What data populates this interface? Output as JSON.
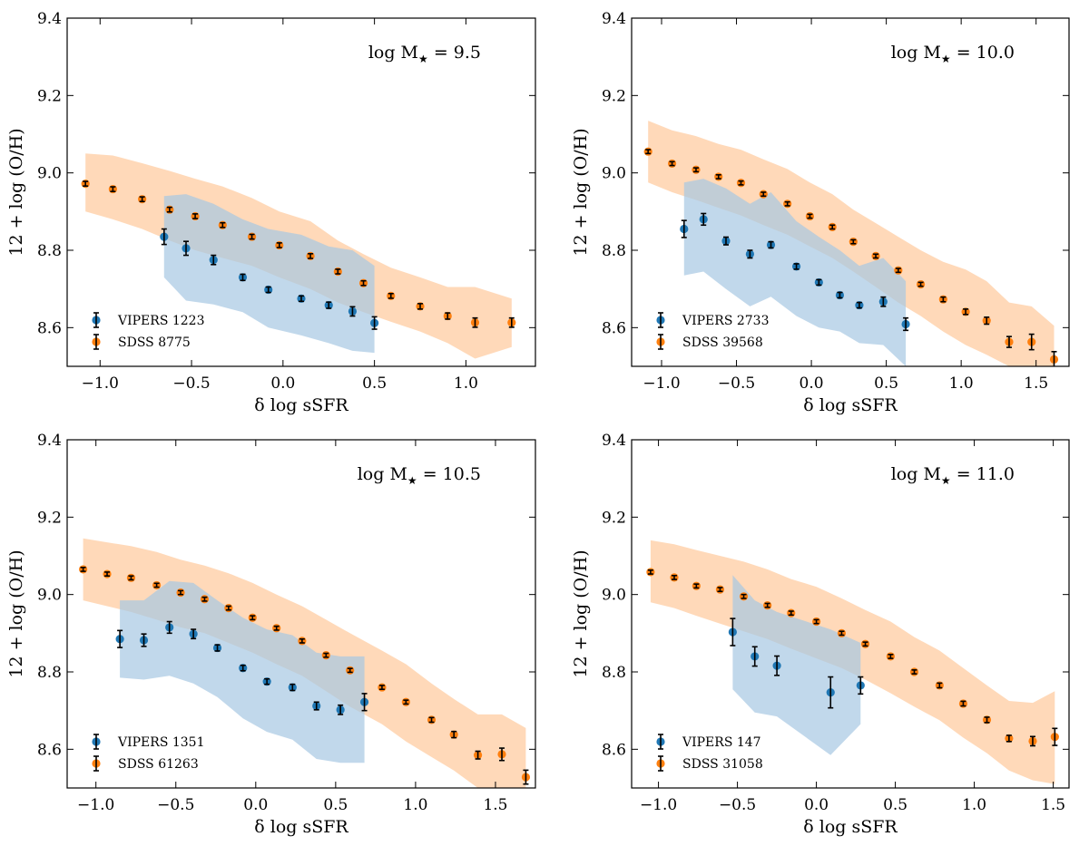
{
  "figure_title": "",
  "colors": {
    "vipers": "#1f77b4",
    "sdss": "#ff7f0e",
    "vipers_band": "#a6c8e2",
    "sdss_band": "#ffd2ad",
    "errorbar": "#000000"
  },
  "chart_data": [
    {
      "type": "scatter",
      "title": "",
      "annotation": "log M★ = 9.5",
      "annotation_base": "log M",
      "annotation_sub": "★",
      "annotation_value": " = 9.5",
      "xlabel": "δ log sSFR",
      "ylabel": "12 + log (O/H)",
      "xlim": [
        -1.18,
        1.38
      ],
      "ylim": [
        8.5,
        9.4
      ],
      "xticks": [
        -1.0,
        -0.5,
        0.0,
        0.5,
        1.0
      ],
      "xtick_labels": [
        "−1.0",
        "−0.5",
        "0.0",
        "0.5",
        "1.0"
      ],
      "yticks": [
        8.6,
        8.8,
        9.0,
        9.2,
        9.4
      ],
      "ytick_labels": [
        "8.6",
        "8.8",
        "9.0",
        "9.2",
        "9.4"
      ],
      "legend": [
        "VIPERS 1223",
        "SDSS 8775"
      ],
      "legend_position": "lower-left",
      "series": [
        {
          "name": "VIPERS 1223",
          "x": [
            -0.65,
            -0.53,
            -0.38,
            -0.22,
            -0.08,
            0.1,
            0.25,
            0.38,
            0.5
          ],
          "y": [
            8.835,
            8.805,
            8.775,
            8.73,
            8.698,
            8.675,
            8.658,
            8.642,
            8.612
          ],
          "err": [
            0.02,
            0.018,
            0.012,
            0.008,
            0.007,
            0.007,
            0.008,
            0.012,
            0.016
          ],
          "band_x": [
            -0.65,
            -0.53,
            -0.38,
            -0.22,
            -0.08,
            0.1,
            0.25,
            0.38,
            0.5
          ],
          "band_upper": [
            8.94,
            8.945,
            8.92,
            8.88,
            8.855,
            8.84,
            8.81,
            8.8,
            8.76
          ],
          "band_lower": [
            8.73,
            8.67,
            8.66,
            8.64,
            8.6,
            8.58,
            8.56,
            8.54,
            8.535
          ]
        },
        {
          "name": "SDSS 8775",
          "x": [
            -1.08,
            -0.93,
            -0.77,
            -0.62,
            -0.48,
            -0.33,
            -0.17,
            -0.02,
            0.15,
            0.3,
            0.44,
            0.59,
            0.75,
            0.9,
            1.05,
            1.25
          ],
          "y": [
            8.972,
            8.958,
            8.932,
            8.905,
            8.888,
            8.865,
            8.835,
            8.813,
            8.785,
            8.745,
            8.715,
            8.682,
            8.655,
            8.63,
            8.613,
            8.613
          ],
          "err": [
            0.006,
            0.006,
            0.006,
            0.006,
            0.006,
            0.006,
            0.006,
            0.006,
            0.006,
            0.006,
            0.006,
            0.006,
            0.007,
            0.008,
            0.012,
            0.012
          ],
          "band_x": [
            -1.08,
            -0.93,
            -0.77,
            -0.62,
            -0.48,
            -0.33,
            -0.17,
            -0.02,
            0.15,
            0.3,
            0.44,
            0.59,
            0.75,
            0.9,
            1.05,
            1.25
          ],
          "band_upper": [
            9.05,
            9.045,
            9.025,
            9.005,
            8.985,
            8.965,
            8.935,
            8.9,
            8.875,
            8.825,
            8.79,
            8.755,
            8.73,
            8.705,
            8.705,
            8.675
          ],
          "band_lower": [
            8.9,
            8.88,
            8.855,
            8.825,
            8.8,
            8.78,
            8.76,
            8.73,
            8.7,
            8.665,
            8.64,
            8.615,
            8.59,
            8.56,
            8.52,
            8.55
          ]
        }
      ]
    },
    {
      "type": "scatter",
      "title": "",
      "annotation": "log M★ = 10.0",
      "annotation_base": "log M",
      "annotation_sub": "★",
      "annotation_value": " = 10.0",
      "xlabel": "δ log sSFR",
      "ylabel": "12 + log (O/H)",
      "xlim": [
        -1.2,
        1.72
      ],
      "ylim": [
        8.5,
        9.4
      ],
      "xticks": [
        -1.0,
        -0.5,
        0.0,
        0.5,
        1.0,
        1.5
      ],
      "xtick_labels": [
        "−1.0",
        "−0.5",
        "0.0",
        "0.5",
        "1.0",
        "1.5"
      ],
      "yticks": [
        8.6,
        8.8,
        9.0,
        9.2,
        9.4
      ],
      "ytick_labels": [
        "8.6",
        "8.8",
        "9.0",
        "9.2",
        "9.4"
      ],
      "legend": [
        "VIPERS 2733",
        "SDSS 39568"
      ],
      "legend_position": "lower-left",
      "series": [
        {
          "name": "VIPERS 2733",
          "x": [
            -0.85,
            -0.72,
            -0.57,
            -0.41,
            -0.27,
            -0.1,
            0.05,
            0.19,
            0.32,
            0.48,
            0.63
          ],
          "y": [
            8.855,
            8.88,
            8.824,
            8.79,
            8.814,
            8.758,
            8.717,
            8.684,
            8.658,
            8.667,
            8.609
          ],
          "err": [
            0.022,
            0.015,
            0.01,
            0.01,
            0.008,
            0.007,
            0.007,
            0.007,
            0.007,
            0.012,
            0.016
          ],
          "band_x": [
            -0.85,
            -0.72,
            -0.57,
            -0.41,
            -0.27,
            -0.1,
            0.05,
            0.19,
            0.32,
            0.48,
            0.63
          ],
          "band_upper": [
            8.975,
            8.985,
            8.96,
            8.92,
            8.95,
            8.875,
            8.835,
            8.8,
            8.76,
            8.78,
            8.72
          ],
          "band_lower": [
            8.735,
            8.745,
            8.7,
            8.655,
            8.68,
            8.63,
            8.6,
            8.59,
            8.56,
            8.555,
            8.5
          ]
        },
        {
          "name": "SDSS 39568",
          "x": [
            -1.09,
            -0.93,
            -0.77,
            -0.62,
            -0.47,
            -0.32,
            -0.16,
            -0.01,
            0.14,
            0.28,
            0.43,
            0.58,
            0.73,
            0.88,
            1.03,
            1.17,
            1.32,
            1.47,
            1.62
          ],
          "y": [
            9.055,
            9.024,
            9.008,
            8.99,
            8.974,
            8.945,
            8.92,
            8.888,
            8.86,
            8.822,
            8.785,
            8.748,
            8.712,
            8.673,
            8.641,
            8.618,
            8.563,
            8.563,
            8.518
          ],
          "err": [
            0.005,
            0.005,
            0.005,
            0.005,
            0.005,
            0.005,
            0.005,
            0.005,
            0.005,
            0.005,
            0.005,
            0.005,
            0.005,
            0.006,
            0.007,
            0.009,
            0.014,
            0.02,
            0.02
          ],
          "band_x": [
            -1.09,
            -0.93,
            -0.77,
            -0.62,
            -0.47,
            -0.32,
            -0.16,
            -0.01,
            0.14,
            0.28,
            0.43,
            0.58,
            0.73,
            0.88,
            1.03,
            1.17,
            1.32,
            1.47,
            1.62
          ],
          "band_upper": [
            9.135,
            9.11,
            9.095,
            9.075,
            9.06,
            9.035,
            9.01,
            8.975,
            8.945,
            8.905,
            8.87,
            8.835,
            8.8,
            8.77,
            8.75,
            8.72,
            8.665,
            8.655,
            8.605
          ],
          "band_lower": [
            8.975,
            8.95,
            8.93,
            8.91,
            8.89,
            8.865,
            8.84,
            8.81,
            8.78,
            8.745,
            8.705,
            8.665,
            8.63,
            8.59,
            8.555,
            8.53,
            8.5,
            8.5,
            8.5
          ]
        }
      ]
    },
    {
      "type": "scatter",
      "title": "",
      "annotation": "log M★ = 10.5",
      "annotation_base": "log M",
      "annotation_sub": "★",
      "annotation_value": " = 10.5",
      "xlabel": "δ log sSFR",
      "ylabel": "12 + log (O/H)",
      "xlim": [
        -1.18,
        1.75
      ],
      "ylim": [
        8.5,
        9.4
      ],
      "xticks": [
        -1.0,
        -0.5,
        0.0,
        0.5,
        1.0,
        1.5
      ],
      "xtick_labels": [
        "−1.0",
        "−0.5",
        "0.0",
        "0.5",
        "1.0",
        "1.5"
      ],
      "yticks": [
        8.6,
        8.8,
        9.0,
        9.2,
        9.4
      ],
      "ytick_labels": [
        "8.6",
        "8.8",
        "9.0",
        "9.2",
        "9.4"
      ],
      "legend": [
        "VIPERS 1351",
        "SDSS 61263"
      ],
      "legend_position": "lower-left",
      "series": [
        {
          "name": "VIPERS 1351",
          "x": [
            -0.85,
            -0.7,
            -0.54,
            -0.39,
            -0.24,
            -0.08,
            0.07,
            0.23,
            0.38,
            0.53,
            0.68
          ],
          "y": [
            8.885,
            8.882,
            8.915,
            8.898,
            8.862,
            8.81,
            8.775,
            8.76,
            8.712,
            8.702,
            8.722
          ],
          "err": [
            0.022,
            0.016,
            0.015,
            0.012,
            0.008,
            0.007,
            0.007,
            0.008,
            0.01,
            0.012,
            0.022
          ],
          "band_x": [
            -0.85,
            -0.7,
            -0.54,
            -0.39,
            -0.24,
            -0.08,
            0.07,
            0.23,
            0.38,
            0.53,
            0.68
          ],
          "band_upper": [
            8.985,
            8.985,
            9.035,
            9.03,
            8.985,
            8.94,
            8.91,
            8.895,
            8.85,
            8.84,
            8.84
          ],
          "band_lower": [
            8.785,
            8.78,
            8.79,
            8.77,
            8.735,
            8.68,
            8.645,
            8.625,
            8.575,
            8.565,
            8.565
          ]
        },
        {
          "name": "SDSS 61263",
          "x": [
            -1.08,
            -0.93,
            -0.78,
            -0.62,
            -0.47,
            -0.32,
            -0.17,
            -0.02,
            0.13,
            0.29,
            0.44,
            0.59,
            0.79,
            0.94,
            1.1,
            1.24,
            1.39,
            1.54,
            1.69
          ],
          "y": [
            9.065,
            9.053,
            9.043,
            9.024,
            9.005,
            8.988,
            8.965,
            8.94,
            8.913,
            8.88,
            8.843,
            8.804,
            8.76,
            8.722,
            8.676,
            8.638,
            8.585,
            8.587,
            8.528
          ],
          "err": [
            0.005,
            0.005,
            0.005,
            0.005,
            0.005,
            0.005,
            0.005,
            0.005,
            0.005,
            0.005,
            0.005,
            0.005,
            0.005,
            0.005,
            0.006,
            0.008,
            0.01,
            0.016,
            0.018
          ],
          "band_x": [
            -1.08,
            -0.93,
            -0.78,
            -0.62,
            -0.47,
            -0.32,
            -0.17,
            -0.02,
            0.13,
            0.29,
            0.44,
            0.59,
            0.79,
            0.94,
            1.1,
            1.24,
            1.39,
            1.54,
            1.69
          ],
          "band_upper": [
            9.145,
            9.135,
            9.125,
            9.11,
            9.09,
            9.075,
            9.055,
            9.03,
            9.0,
            8.97,
            8.935,
            8.9,
            8.855,
            8.82,
            8.77,
            8.73,
            8.69,
            8.69,
            8.655
          ],
          "band_lower": [
            8.985,
            8.97,
            8.955,
            8.935,
            8.915,
            8.9,
            8.875,
            8.85,
            8.82,
            8.79,
            8.75,
            8.71,
            8.665,
            8.62,
            8.58,
            8.545,
            8.5,
            8.5,
            8.5
          ]
        }
      ]
    },
    {
      "type": "scatter",
      "title": "",
      "annotation": "log M★ = 11.0",
      "annotation_base": "log M",
      "annotation_sub": "★",
      "annotation_value": " = 11.0",
      "xlabel": "δ log sSFR",
      "ylabel": "12 + log (O/H)",
      "xlim": [
        -1.17,
        1.6
      ],
      "ylim": [
        8.5,
        9.4
      ],
      "xticks": [
        -1.0,
        -0.5,
        0.0,
        0.5,
        1.0,
        1.5
      ],
      "xtick_labels": [
        "−1.0",
        "−0.5",
        "0.0",
        "0.5",
        "1.0",
        "1.5"
      ],
      "yticks": [
        8.6,
        8.8,
        9.0,
        9.2,
        9.4
      ],
      "ytick_labels": [
        "8.6",
        "8.8",
        "9.0",
        "9.2",
        "9.4"
      ],
      "legend": [
        "VIPERS 147",
        "SDSS 31058"
      ],
      "legend_position": "lower-left",
      "series": [
        {
          "name": "VIPERS 147",
          "x": [
            -0.53,
            -0.39,
            -0.25,
            0.09,
            0.28
          ],
          "y": [
            8.903,
            8.84,
            8.816,
            8.747,
            8.765
          ],
          "err": [
            0.035,
            0.025,
            0.025,
            0.04,
            0.022
          ],
          "band_x": [
            -0.53,
            -0.39,
            -0.25,
            0.09,
            0.28
          ],
          "band_upper": [
            9.05,
            8.985,
            8.955,
            8.91,
            8.875
          ],
          "band_lower": [
            8.755,
            8.695,
            8.685,
            8.585,
            8.665
          ]
        },
        {
          "name": "SDSS 31058",
          "x": [
            -1.05,
            -0.9,
            -0.76,
            -0.61,
            -0.46,
            -0.31,
            -0.16,
            0.0,
            0.16,
            0.31,
            0.47,
            0.62,
            0.78,
            0.93,
            1.08,
            1.22,
            1.37,
            1.51
          ],
          "y": [
            9.058,
            9.044,
            9.022,
            9.013,
            8.995,
            8.972,
            8.952,
            8.93,
            8.9,
            8.872,
            8.84,
            8.8,
            8.765,
            8.718,
            8.676,
            8.628,
            8.621,
            8.632
          ],
          "err": [
            0.005,
            0.005,
            0.005,
            0.005,
            0.005,
            0.005,
            0.005,
            0.005,
            0.005,
            0.005,
            0.005,
            0.005,
            0.006,
            0.006,
            0.007,
            0.008,
            0.012,
            0.022
          ],
          "band_x": [
            -1.05,
            -0.9,
            -0.76,
            -0.61,
            -0.46,
            -0.31,
            -0.16,
            0.0,
            0.16,
            0.31,
            0.47,
            0.62,
            0.78,
            0.93,
            1.08,
            1.22,
            1.37,
            1.51
          ],
          "band_upper": [
            9.14,
            9.13,
            9.115,
            9.1,
            9.085,
            9.065,
            9.04,
            9.02,
            8.99,
            8.96,
            8.93,
            8.89,
            8.855,
            8.81,
            8.765,
            8.725,
            8.72,
            8.75
          ],
          "band_lower": [
            8.98,
            8.965,
            8.945,
            8.925,
            8.905,
            8.885,
            8.86,
            8.835,
            8.81,
            8.78,
            8.745,
            8.71,
            8.675,
            8.63,
            8.59,
            8.545,
            8.52,
            8.51
          ]
        }
      ]
    }
  ]
}
